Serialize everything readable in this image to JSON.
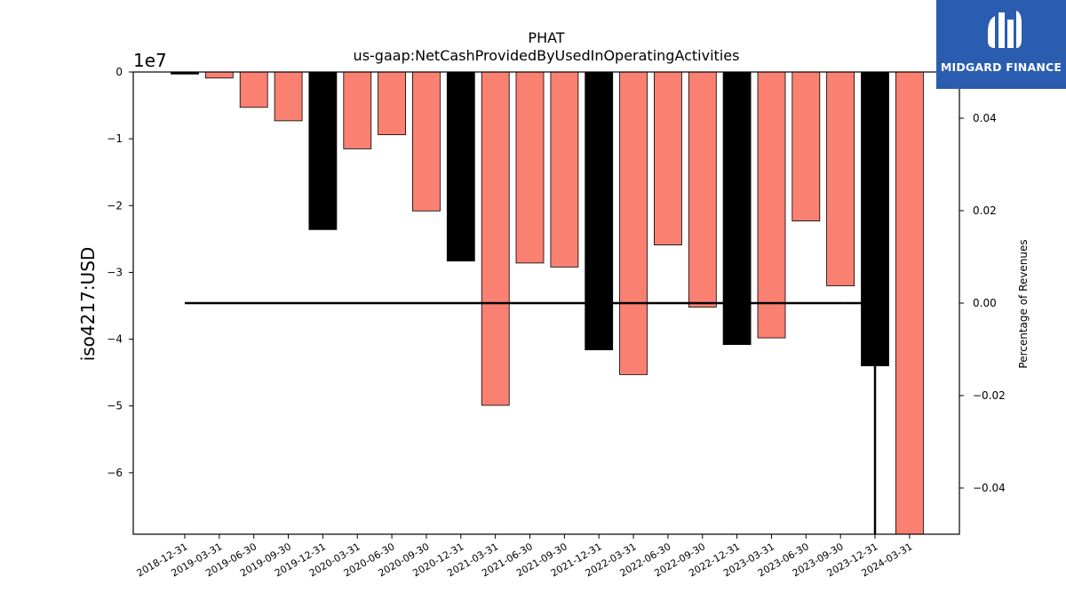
{
  "chart_data": {
    "type": "bar",
    "title": "PHAT",
    "subtitle": "us-gaap:NetCashProvidedByUsedInOperatingActivities",
    "ylabel": "iso4217:USD",
    "y_offset_text": "1e7",
    "y2label": "Percentage of Revenues",
    "ylim": [
      -69200000.0,
      0
    ],
    "y2lim": [
      -0.05,
      0.05
    ],
    "yticks": [
      0,
      -1,
      -2,
      -3,
      -4,
      -5,
      -6
    ],
    "y2ticks": [
      "0.04",
      "0.02",
      "0.00",
      "−0.02",
      "−0.04"
    ],
    "y2tick_values": [
      0.04,
      0.02,
      0.0,
      -0.02,
      -0.04
    ],
    "grid": false,
    "categories": [
      "2018-12-31",
      "2019-03-31",
      "2019-06-30",
      "2019-09-30",
      "2019-12-31",
      "2020-03-31",
      "2020-06-30",
      "2020-09-30",
      "2020-12-31",
      "2021-03-31",
      "2021-06-30",
      "2021-09-30",
      "2021-12-31",
      "2022-03-31",
      "2022-06-30",
      "2022-09-30",
      "2022-12-31",
      "2023-03-31",
      "2023-06-30",
      "2023-09-30",
      "2023-12-31",
      "2024-03-31"
    ],
    "values": [
      -300000,
      -900000,
      -5300000,
      -7300000,
      -23600000,
      -11500000,
      -9400000,
      -20800000,
      -28300000,
      -49900000,
      -28600000,
      -29200000,
      -41600000,
      -45300000,
      -25900000,
      -35200000,
      -40800000,
      -39800000,
      -22300000,
      -32000000,
      -44000000,
      -69200000
    ],
    "annual": [
      true,
      false,
      false,
      false,
      true,
      false,
      false,
      false,
      true,
      false,
      false,
      false,
      true,
      false,
      false,
      false,
      true,
      false,
      false,
      false,
      true,
      false
    ],
    "colors": {
      "annual": "#000000",
      "quarterly": "#fa8072"
    },
    "ratio_line": {
      "from": "2018-12-31",
      "to": "2023-09-30",
      "value": 0.0
    },
    "ratio_drop": {
      "at": "2023-12-31",
      "value": -0.05
    }
  },
  "brand": {
    "name": "MIDGARD FINANCE",
    "color": "#2a5db0"
  }
}
